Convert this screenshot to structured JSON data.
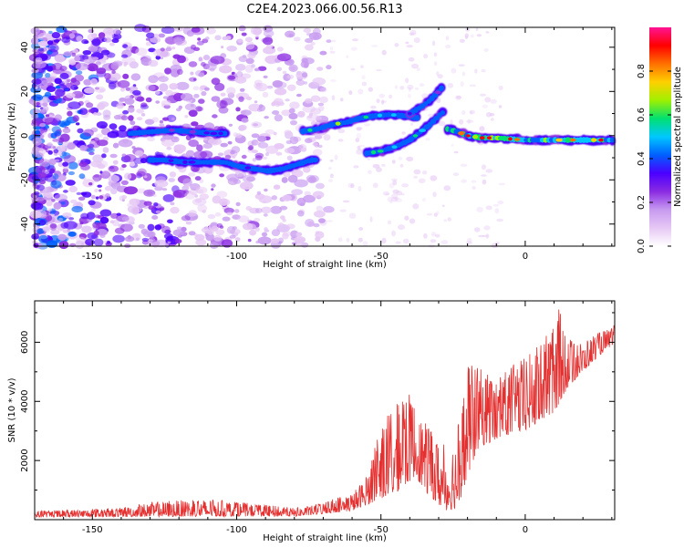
{
  "figure_title": "C2E4.2023.066.00.56.R13",
  "colors": {
    "line": "#e53030",
    "colormap": [
      "#ffffff",
      "#e6c8f5",
      "#c79af0",
      "#8a2be2",
      "#4b00ff",
      "#0060ff",
      "#00c8ff",
      "#00e070",
      "#a0f000",
      "#ffd000",
      "#ff7000",
      "#ff0000",
      "#ff1493"
    ]
  },
  "chart_data": [
    {
      "type": "heatmap",
      "title": "",
      "xlabel": "Height of straight line (km)",
      "ylabel": "Frequency (Hz)",
      "xlim": [
        -170,
        31
      ],
      "ylim": [
        -50,
        49
      ],
      "xticks": [
        -150,
        -100,
        -50,
        0
      ],
      "yticks": [
        -40,
        -20,
        0,
        20,
        40
      ],
      "grid": false,
      "colorbar": {
        "label": "Normalized spectral amplitude",
        "range": [
          0,
          1
        ],
        "ticks": [
          "0.0",
          "0.2",
          "0.4",
          "0.6",
          "0.8"
        ]
      },
      "features": [
        {
          "name": "lower branch",
          "x": [
            -130,
            -125,
            -118,
            -110,
            -104,
            -99,
            -94,
            -89,
            -84,
            -79,
            -74,
            -72
          ],
          "y": [
            -11,
            -11,
            -12,
            -12,
            -12,
            -14,
            -15,
            -16,
            -15,
            -13,
            -11,
            -11
          ],
          "amplitude": 0.4
        },
        {
          "name": "left upper segment",
          "x": [
            -137,
            -132,
            -127,
            -122,
            -118,
            -113,
            -108,
            -103
          ],
          "y": [
            1,
            1.5,
            2,
            2.5,
            2,
            1.5,
            1,
            1
          ],
          "amplitude": 0.3
        },
        {
          "name": "rising upper segment",
          "x": [
            -77,
            -72,
            -67,
            -62,
            -57,
            -52,
            -47,
            -42,
            -37
          ],
          "y": [
            2,
            3,
            5,
            6,
            8,
            9,
            9.5,
            9,
            8
          ],
          "amplitude": 0.6
        },
        {
          "name": "rising lower segment",
          "x": [
            -55,
            -50,
            -45,
            -40,
            -36,
            -33,
            -30,
            -28
          ],
          "y": [
            -8,
            -7,
            -5,
            -2,
            2,
            5,
            9,
            11
          ],
          "amplitude": 0.5
        },
        {
          "name": "upper tip segment",
          "x": [
            -40,
            -36,
            -33,
            -30,
            -28
          ],
          "y": [
            10,
            13,
            16,
            20,
            23
          ],
          "amplitude": 0.35
        },
        {
          "name": "main trace",
          "x": [
            -27,
            -24,
            -20,
            -15,
            -10,
            -5,
            0,
            5,
            10,
            15,
            20,
            25,
            31
          ],
          "y": [
            3,
            2,
            0,
            -1,
            -1,
            -1.5,
            -2,
            -2,
            -2,
            -2,
            -2,
            -2,
            -2
          ],
          "amplitude": 0.85
        }
      ]
    },
    {
      "type": "line",
      "title": "",
      "xlabel": "Height of straight line (km)",
      "ylabel": "SNR (10 * v/v)",
      "xlim": [
        -170,
        31
      ],
      "ylim": [
        0,
        7400
      ],
      "xticks": [
        -150,
        -100,
        -50,
        0
      ],
      "yticks": [
        2000,
        4000,
        6000
      ],
      "grid": false,
      "envelope": {
        "x": [
          -170,
          -140,
          -130,
          -110,
          -100,
          -80,
          -75,
          -70,
          -60,
          -55,
          -50,
          -45,
          -40,
          -38,
          -35,
          -30,
          -27,
          -24,
          -22,
          -20,
          -18,
          -15,
          -10,
          -5,
          0,
          5,
          10,
          12,
          15,
          20,
          25,
          30,
          31
        ],
        "lower": [
          80,
          100,
          100,
          110,
          110,
          110,
          150,
          200,
          300,
          500,
          700,
          900,
          1300,
          1500,
          1000,
          500,
          300,
          400,
          800,
          1400,
          2000,
          2500,
          2700,
          2900,
          3000,
          3300,
          3600,
          4000,
          4500,
          5000,
          5500,
          5900,
          6000
        ],
        "upper": [
          300,
          400,
          600,
          700,
          600,
          400,
          450,
          600,
          900,
          1500,
          3200,
          3900,
          4300,
          4000,
          3300,
          2700,
          2500,
          3000,
          4200,
          5200,
          5300,
          5100,
          4800,
          5200,
          5500,
          6000,
          6500,
          7300,
          6200,
          6000,
          6300,
          6500,
          6600
        ]
      }
    }
  ]
}
